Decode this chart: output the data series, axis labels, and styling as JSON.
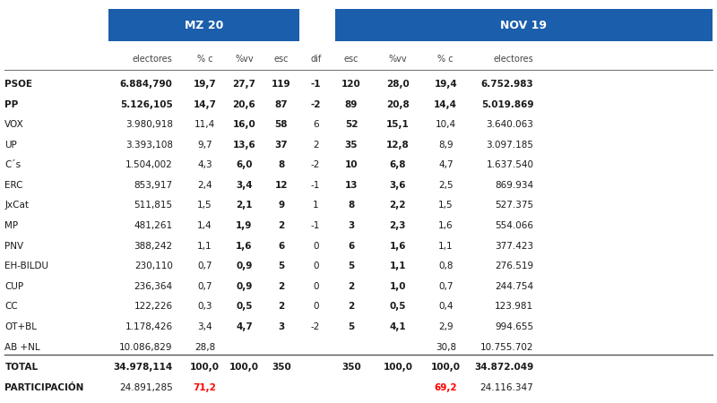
{
  "title_mz": "MZ 20",
  "title_nov": "NOV 19",
  "header_mz": [
    "electores",
    "% c",
    "%vv",
    "esc",
    "dif"
  ],
  "header_nov": [
    "esc",
    "%vv",
    "% c",
    "electores"
  ],
  "parties": [
    "PSOE",
    "PP",
    "VOX",
    "UP",
    "C´s",
    "ERC",
    "JxCat",
    "MP",
    "PNV",
    "EH-BILDU",
    "CUP",
    "CC",
    "OT+BL",
    "AB +NL"
  ],
  "rows": [
    [
      "6.884,790",
      "19,7",
      "27,7",
      "119",
      "-1",
      "120",
      "28,0",
      "19,4",
      "6.752.983"
    ],
    [
      "5.126,105",
      "14,7",
      "20,6",
      "87",
      "-2",
      "89",
      "20,8",
      "14,4",
      "5.019.869"
    ],
    [
      "3.980,918",
      "11,4",
      "16,0",
      "58",
      "6",
      "52",
      "15,1",
      "10,4",
      "3.640.063"
    ],
    [
      "3.393,108",
      "9,7",
      "13,6",
      "37",
      "2",
      "35",
      "12,8",
      "8,9",
      "3.097.185"
    ],
    [
      "1.504,002",
      "4,3",
      "6,0",
      "8",
      "-2",
      "10",
      "6,8",
      "4,7",
      "1.637.540"
    ],
    [
      "853,917",
      "2,4",
      "3,4",
      "12",
      "-1",
      "13",
      "3,6",
      "2,5",
      "869.934"
    ],
    [
      "511,815",
      "1,5",
      "2,1",
      "9",
      "1",
      "8",
      "2,2",
      "1,5",
      "527.375"
    ],
    [
      "481,261",
      "1,4",
      "1,9",
      "2",
      "-1",
      "3",
      "2,3",
      "1,6",
      "554.066"
    ],
    [
      "388,242",
      "1,1",
      "1,6",
      "6",
      "0",
      "6",
      "1,6",
      "1,1",
      "377.423"
    ],
    [
      "230,110",
      "0,7",
      "0,9",
      "5",
      "0",
      "5",
      "1,1",
      "0,8",
      "276.519"
    ],
    [
      "236,364",
      "0,7",
      "0,9",
      "2",
      "0",
      "2",
      "1,0",
      "0,7",
      "244.754"
    ],
    [
      "122,226",
      "0,3",
      "0,5",
      "2",
      "0",
      "2",
      "0,5",
      "0,4",
      "123.981"
    ],
    [
      "1.178,426",
      "3,4",
      "4,7",
      "3",
      "-2",
      "5",
      "4,1",
      "2,9",
      "994.655"
    ],
    [
      "10.086,829",
      "28,8",
      "",
      "",
      "",
      "",
      "",
      "30,8",
      "10.755.702"
    ]
  ],
  "total_row": [
    "34.978,114",
    "100,0",
    "100,0",
    "350",
    "",
    "350",
    "100,0",
    "100,0",
    "34.872.049"
  ],
  "participacion_row": [
    "24.891,285",
    "71,2",
    "",
    "",
    "",
    "",
    "",
    "69,2",
    "24.116.347"
  ],
  "blue_color": "#1B5EAB",
  "body_text": "#1a1a1a",
  "red_color": "#FF0000",
  "fig_bg": "#FFFFFF"
}
